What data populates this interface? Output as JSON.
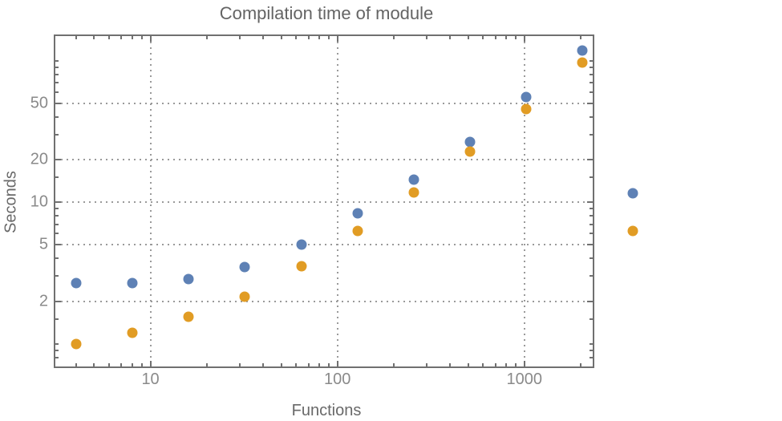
{
  "chart_data": {
    "type": "scatter",
    "title": "Compilation time of module",
    "xlabel": "Functions",
    "ylabel": "Seconds",
    "x_scale": "log",
    "y_scale": "log",
    "x_range": [
      3.1,
      2320
    ],
    "y_range": [
      0.69,
      150
    ],
    "grid": "dotted gridlines at labeled ticks only",
    "legend_position": "right-of-frame, markers only (no visible text)",
    "x": [
      4,
      8,
      16,
      32,
      64,
      128,
      256,
      512,
      1024,
      2048
    ],
    "series": [
      {
        "name": "blue-series",
        "color": "#5E81B5",
        "values": [
          2.7,
          2.7,
          2.85,
          3.5,
          5.05,
          8.35,
          14.4,
          26.6,
          55.5,
          118
        ]
      },
      {
        "name": "orange-series",
        "color": "#E19C24",
        "values": [
          1.0,
          1.2,
          1.55,
          2.15,
          3.55,
          6.25,
          11.7,
          22.8,
          45.6,
          97
        ]
      }
    ],
    "x_ticks": {
      "labeled": [
        10,
        100,
        1000
      ],
      "labels": [
        "10",
        "100",
        "1000"
      ],
      "minor": [
        4,
        5,
        6,
        7,
        8,
        9,
        20,
        30,
        40,
        50,
        60,
        70,
        80,
        90,
        200,
        300,
        400,
        500,
        600,
        700,
        800,
        900,
        2000
      ]
    },
    "y_ticks": {
      "labeled": [
        50,
        20,
        10,
        5,
        2
      ],
      "labels": [
        "50",
        "20",
        "10",
        "5",
        "2"
      ],
      "minor": [
        0.8,
        0.9,
        1,
        1.5,
        3,
        4,
        6,
        7,
        8,
        9,
        15,
        30,
        40,
        60,
        70,
        80,
        90,
        100,
        150
      ]
    }
  },
  "legend": {
    "markers": [
      {
        "name": "blue-series-marker",
        "color": "#5E81B5"
      },
      {
        "name": "orange-series-marker",
        "color": "#E19C24"
      }
    ]
  },
  "colors": {
    "background": "#ffffff",
    "frame": "#707070",
    "gridline": "#9a9a9a",
    "tick_label": "#8a8a8a",
    "title": "#646464",
    "axis_label": "#696969",
    "series_blue": "#5E81B5",
    "series_orange": "#E19C24"
  }
}
